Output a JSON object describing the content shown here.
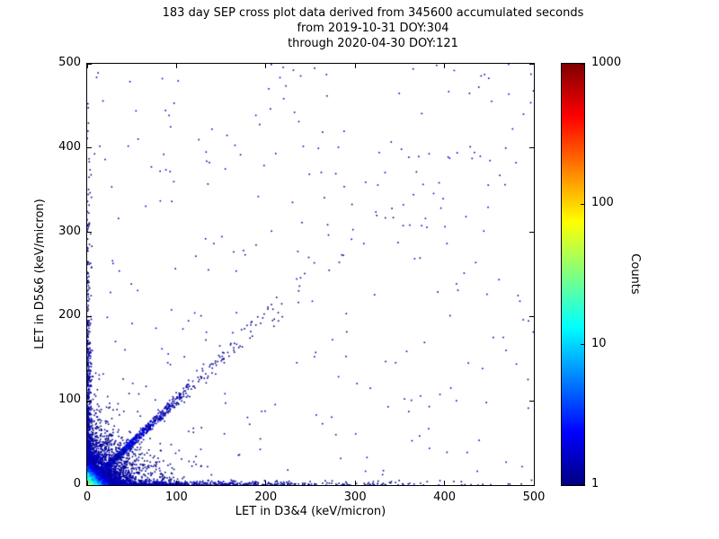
{
  "chart_data": {
    "type": "scatter",
    "title": "183 day SEP cross plot data derived from 345600 accumulated seconds",
    "subtitle1": "from 2019-10-31 DOY:304",
    "subtitle2": "through 2020-04-30 DOY:121",
    "xlabel": "LET in D3&4 (keV/micron)",
    "ylabel": "LET in D5&6 (keV/micron)",
    "xlim": [
      0,
      500
    ],
    "ylim": [
      0,
      500
    ],
    "xticks": [
      0,
      100,
      200,
      300,
      400,
      500
    ],
    "yticks": [
      0,
      100,
      200,
      300,
      400,
      500
    ],
    "grid": false,
    "legend": "none",
    "colorbar": {
      "label": "Counts",
      "scale": "log",
      "min": 1,
      "max": 1000,
      "ticks": [
        1,
        10,
        100,
        1000
      ],
      "colormap": "jet"
    },
    "seed": 20191031,
    "clusters": [
      {
        "name": "sparse-field",
        "type": "uniform",
        "n": 280,
        "count_base": 1
      },
      {
        "name": "diagonal-outer",
        "type": "diagonal",
        "n": 130,
        "scale": 120,
        "spread": 10,
        "count_base": 2
      },
      {
        "name": "left-edge-band",
        "type": "vaxis",
        "n": 650,
        "scale": 90,
        "spread": 6,
        "count_base": 3
      },
      {
        "name": "bottom-edge-band",
        "type": "haxis",
        "n": 850,
        "scale": 110,
        "spread": 6,
        "count_base": 3
      },
      {
        "name": "diagonal-band",
        "type": "diagonal",
        "n": 1300,
        "scale": 40,
        "spread": 5,
        "count_base": 8
      },
      {
        "name": "origin-halo",
        "type": "exponential",
        "n": 2800,
        "x_scale": 20,
        "y_scale": 20,
        "count_base": 6
      },
      {
        "name": "origin-core",
        "type": "exponential",
        "n": 5200,
        "x_scale": 6,
        "y_scale": 6,
        "count_base": 100
      }
    ],
    "description": "Density-colored LET coincidence scatter: dense blue/cyan cluster at the origin, a diagonal ion band, event bands hugging both axes, and sparse single-count (dark blue) events across the field."
  }
}
